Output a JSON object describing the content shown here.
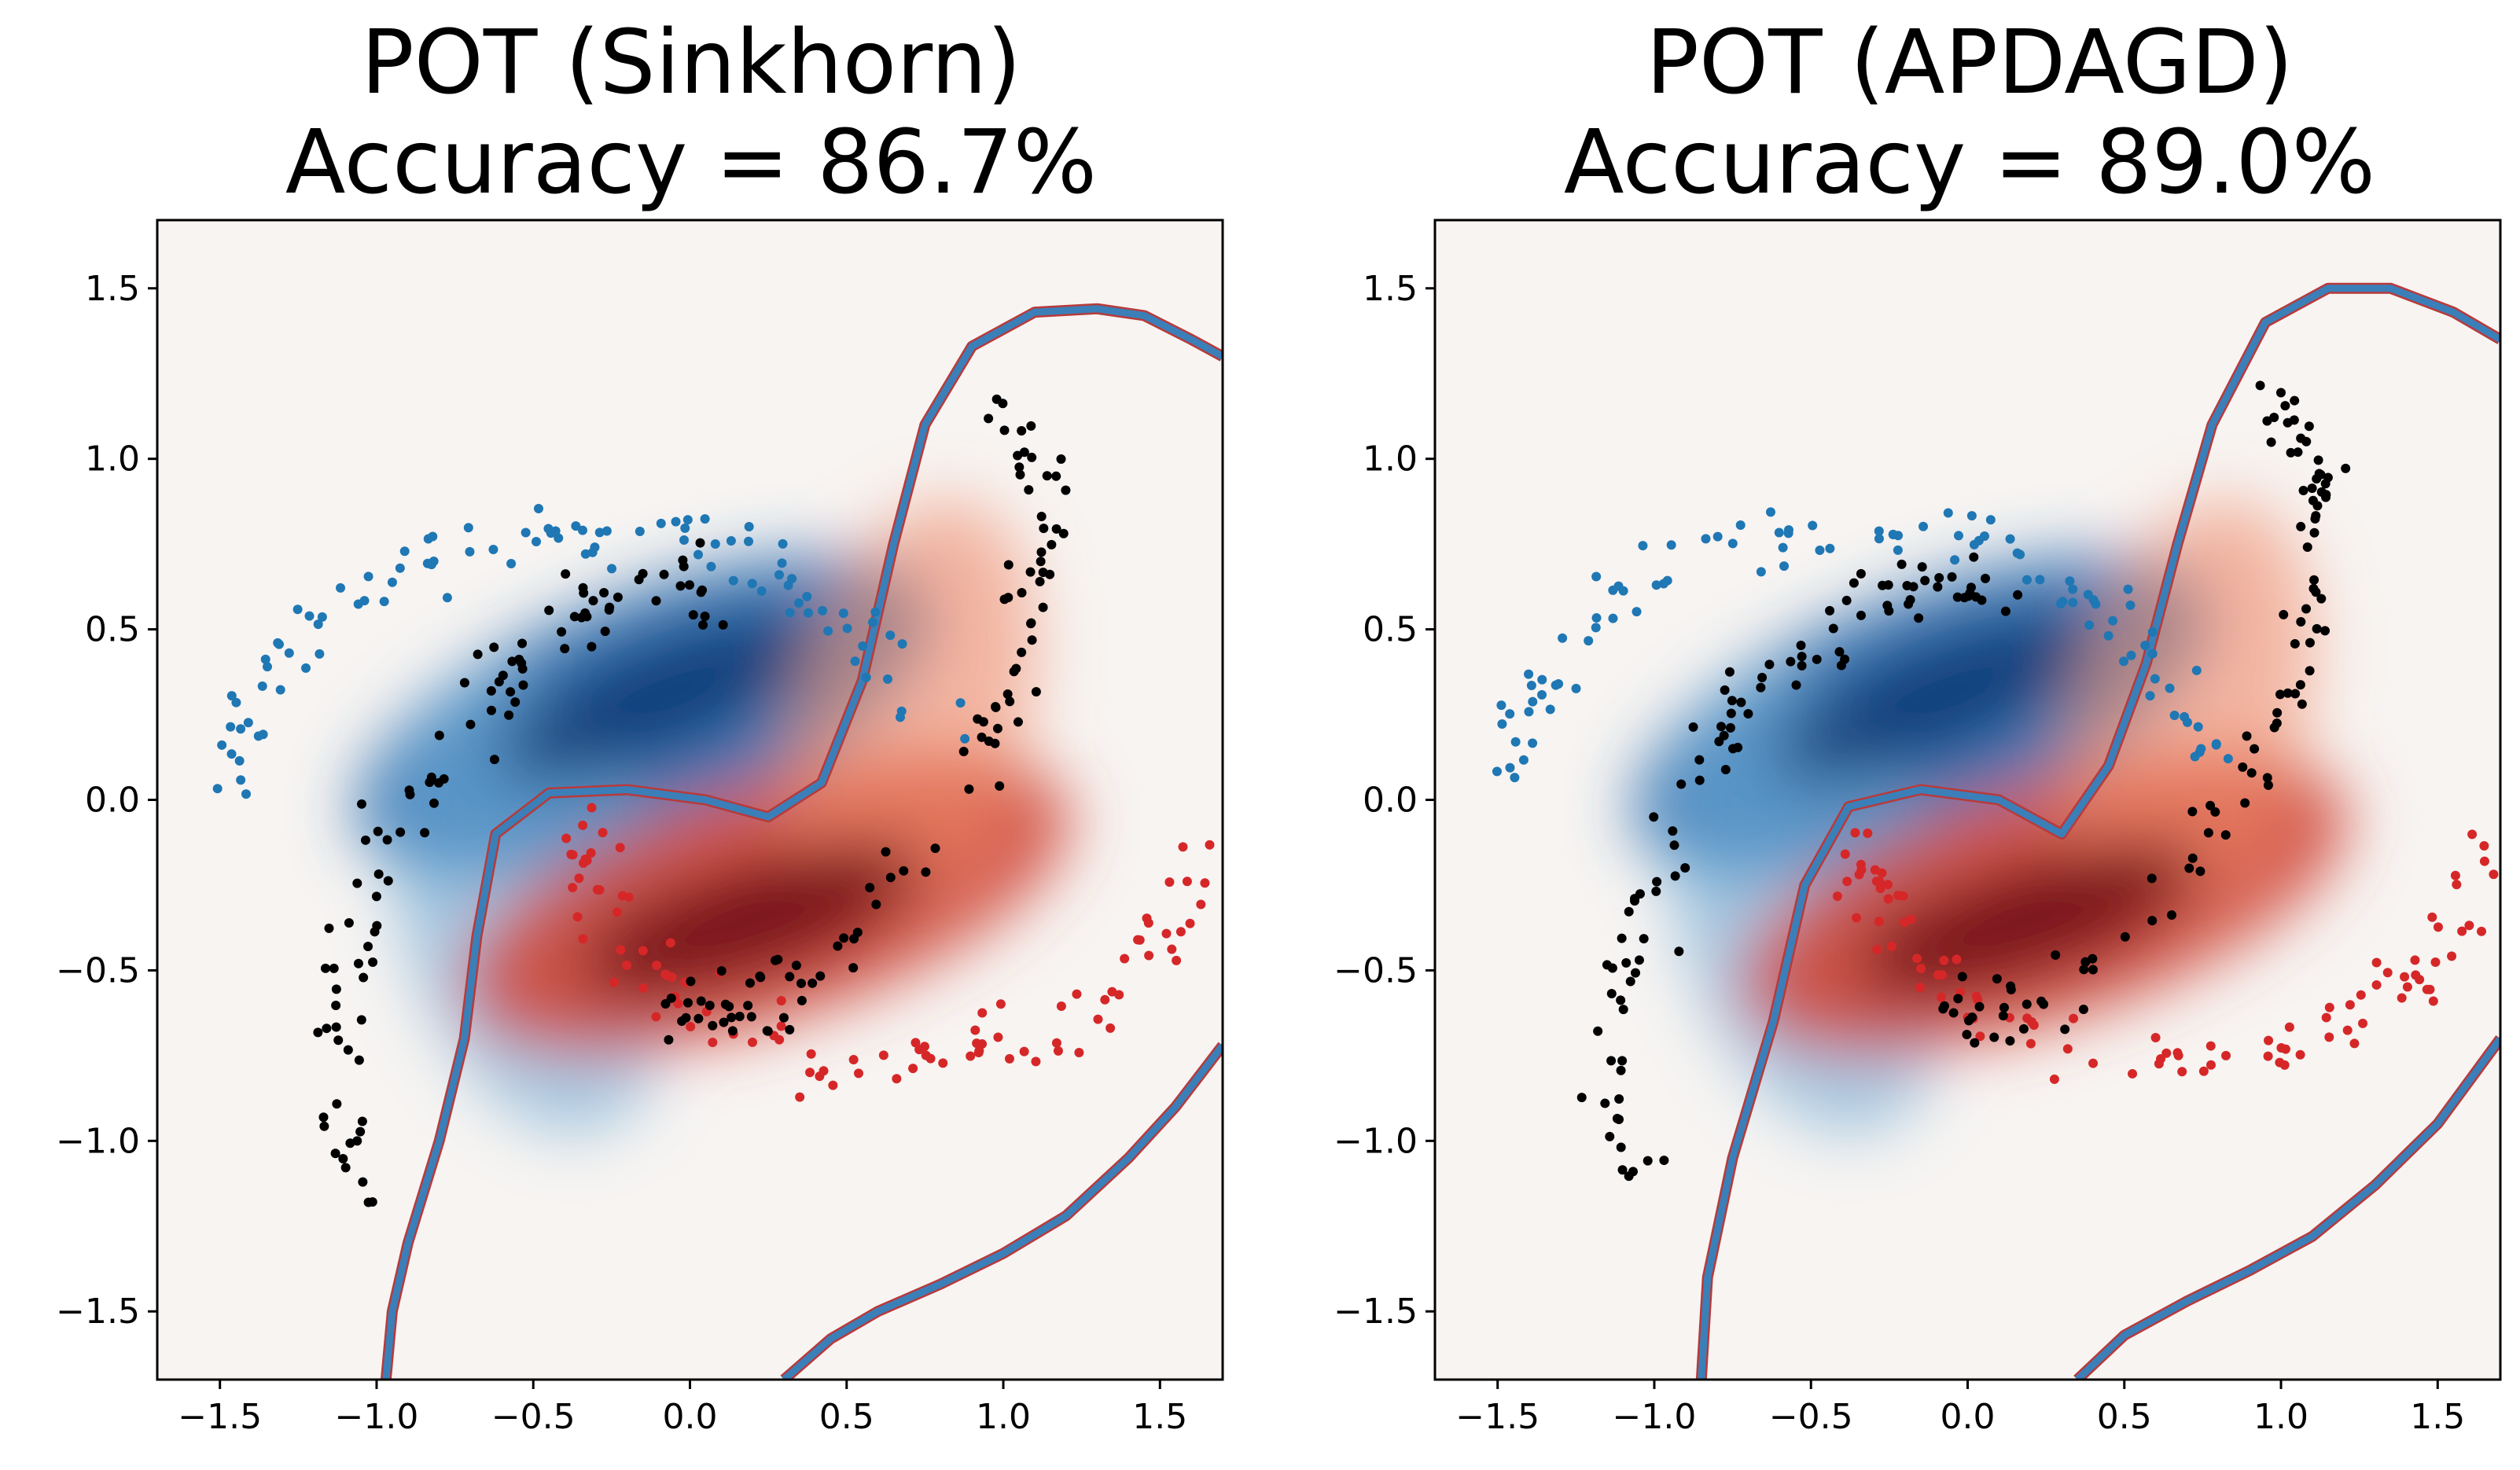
{
  "colors": {
    "class_blue": "#1f77b4",
    "class_red": "#d62728",
    "target_points": "#000000",
    "boundary": "#3b7fb9",
    "boundary_edge": "#b83a3a",
    "heat_blue_dark": "#08306b",
    "heat_red_dark": "#67000d",
    "background": "#f7f4f2"
  },
  "chart_data": [
    {
      "type": "scatter",
      "title_line1": "POT (Sinkhorn)",
      "title_line2": "Accuracy = 86.7%",
      "accuracy": 86.7,
      "xlim": [
        -1.7,
        1.7
      ],
      "ylim": [
        -1.7,
        1.7
      ],
      "xticks": [
        -1.5,
        -1.0,
        -0.5,
        0.0,
        0.5,
        1.0,
        1.5
      ],
      "yticks": [
        -1.5,
        -1.0,
        -0.5,
        0.0,
        0.5,
        1.0,
        1.5
      ],
      "xtick_labels": [
        "−1.5",
        "−1.0",
        "−0.5",
        "0.0",
        "0.5",
        "1.0",
        "1.5"
      ],
      "ytick_labels": [
        "−1.5",
        "−1.0",
        "−0.5",
        "0.0",
        "0.5",
        "1.0",
        "1.5"
      ],
      "grid": false,
      "source_blue_moon": {
        "center": [
          0.0,
          0.0
        ],
        "radius": 1.0,
        "arc_deg": [
          0,
          180
        ],
        "rotation_deg": 20,
        "offset": [
          -0.5,
          0.1
        ],
        "count": 100
      },
      "source_red_moon": {
        "center": [
          0.0,
          0.0
        ],
        "radius": 1.0,
        "arc_deg": [
          180,
          360
        ],
        "rotation_deg": 20,
        "offset": [
          1.0,
          -0.35
        ],
        "count": 100
      },
      "target_points": {
        "description_shape": "rotated two-moons",
        "rotation_deg": 55,
        "count": 200
      },
      "heatmap": {
        "blue_center": [
          -0.15,
          0.25
        ],
        "red_center": [
          0.25,
          -0.3
        ],
        "max": 1.0
      },
      "boundary_upper": [
        [
          -0.97,
          -1.7
        ],
        [
          -0.95,
          -1.5
        ],
        [
          -0.9,
          -1.3
        ],
        [
          -0.8,
          -1.0
        ],
        [
          -0.72,
          -0.7
        ],
        [
          -0.68,
          -0.4
        ],
        [
          -0.62,
          -0.1
        ],
        [
          -0.45,
          0.02
        ],
        [
          -0.2,
          0.03
        ],
        [
          0.05,
          0.0
        ],
        [
          0.25,
          -0.05
        ],
        [
          0.42,
          0.05
        ],
        [
          0.55,
          0.35
        ],
        [
          0.65,
          0.75
        ],
        [
          0.75,
          1.1
        ],
        [
          0.9,
          1.33
        ],
        [
          1.1,
          1.43
        ],
        [
          1.3,
          1.44
        ],
        [
          1.45,
          1.42
        ],
        [
          1.6,
          1.35
        ],
        [
          1.7,
          1.3
        ]
      ],
      "boundary_lower": [
        [
          0.3,
          -1.7
        ],
        [
          0.45,
          -1.58
        ],
        [
          0.6,
          -1.5
        ],
        [
          0.8,
          -1.42
        ],
        [
          1.0,
          -1.33
        ],
        [
          1.2,
          -1.22
        ],
        [
          1.4,
          -1.05
        ],
        [
          1.55,
          -0.9
        ],
        [
          1.7,
          -0.72
        ]
      ]
    },
    {
      "type": "scatter",
      "title_line1": "POT (APDAGD)",
      "title_line2": "Accuracy = 89.0%",
      "accuracy": 89.0,
      "xlim": [
        -1.7,
        1.7
      ],
      "ylim": [
        -1.7,
        1.7
      ],
      "xticks": [
        -1.5,
        -1.0,
        -0.5,
        0.0,
        0.5,
        1.0,
        1.5
      ],
      "yticks": [
        -1.5,
        -1.0,
        -0.5,
        0.0,
        0.5,
        1.0,
        1.5
      ],
      "xtick_labels": [
        "−1.5",
        "−1.0",
        "−0.5",
        "0.0",
        "0.5",
        "1.0",
        "1.5"
      ],
      "ytick_labels": [
        "−1.5",
        "−1.0",
        "−0.5",
        "0.0",
        "0.5",
        "1.0",
        "1.5"
      ],
      "grid": false,
      "source_blue_moon": {
        "center": [
          0.0,
          0.0
        ],
        "radius": 1.0,
        "arc_deg": [
          0,
          180
        ],
        "rotation_deg": 20,
        "offset": [
          -0.5,
          0.1
        ],
        "count": 100
      },
      "source_red_moon": {
        "center": [
          0.0,
          0.0
        ],
        "radius": 1.0,
        "arc_deg": [
          180,
          360
        ],
        "rotation_deg": 20,
        "offset": [
          1.0,
          -0.35
        ],
        "count": 100
      },
      "target_points": {
        "description_shape": "rotated two-moons",
        "rotation_deg": 55,
        "count": 200
      },
      "heatmap": {
        "blue_center": [
          -0.15,
          0.25
        ],
        "red_center": [
          0.25,
          -0.3
        ],
        "max": 1.0
      },
      "boundary_upper": [
        [
          -0.85,
          -1.7
        ],
        [
          -0.83,
          -1.4
        ],
        [
          -0.75,
          -1.05
        ],
        [
          -0.62,
          -0.65
        ],
        [
          -0.52,
          -0.25
        ],
        [
          -0.38,
          -0.02
        ],
        [
          -0.15,
          0.03
        ],
        [
          0.1,
          0.0
        ],
        [
          0.3,
          -0.1
        ],
        [
          0.45,
          0.1
        ],
        [
          0.57,
          0.4
        ],
        [
          0.67,
          0.75
        ],
        [
          0.78,
          1.1
        ],
        [
          0.95,
          1.4
        ],
        [
          1.15,
          1.5
        ],
        [
          1.35,
          1.5
        ],
        [
          1.55,
          1.43
        ],
        [
          1.7,
          1.35
        ]
      ],
      "boundary_lower": [
        [
          0.35,
          -1.7
        ],
        [
          0.5,
          -1.57
        ],
        [
          0.7,
          -1.47
        ],
        [
          0.9,
          -1.38
        ],
        [
          1.1,
          -1.28
        ],
        [
          1.3,
          -1.13
        ],
        [
          1.5,
          -0.95
        ],
        [
          1.7,
          -0.7
        ]
      ]
    }
  ]
}
